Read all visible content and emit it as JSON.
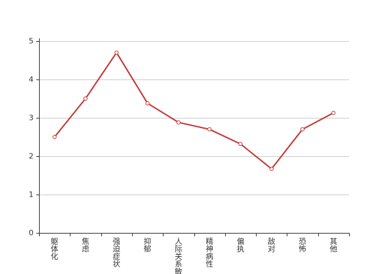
{
  "chart_data": {
    "type": "line",
    "categories": [
      "躯体化",
      "焦虑",
      "强迫症状",
      "抑郁",
      "人际关系敏感",
      "精神病性",
      "偏执",
      "敌对",
      "恐怖",
      "其他"
    ],
    "series": [
      {
        "values": [
          2.5,
          3.5,
          4.7,
          3.38,
          2.88,
          2.7,
          2.32,
          1.67,
          2.7,
          3.13
        ],
        "color": "#c23531"
      }
    ],
    "ylim": [
      0,
      5
    ],
    "yticks": [
      "0",
      "1",
      "2",
      "3",
      "4",
      "5"
    ],
    "grid": true,
    "legend": "none",
    "title": "",
    "xlabel": "",
    "ylabel": ""
  }
}
